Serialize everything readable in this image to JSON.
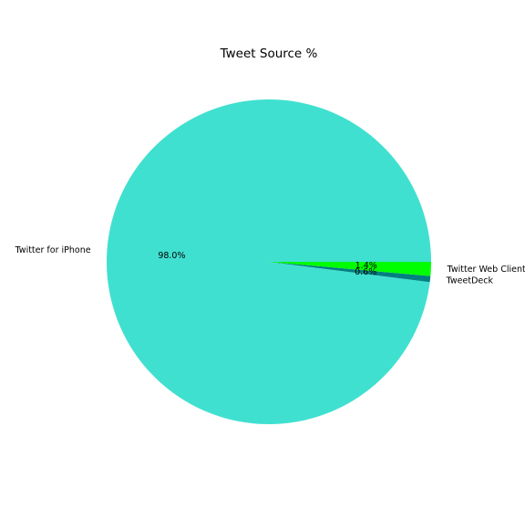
{
  "chart_data": {
    "type": "pie",
    "title": "Tweet Source %",
    "slices": [
      {
        "label": "Twitter for iPhone",
        "value": 98.0,
        "pct_label": "98.0%",
        "color": "#40e0d0"
      },
      {
        "label": "TweetDeck",
        "value": 0.6,
        "pct_label": "0.6%",
        "color": "#008080"
      },
      {
        "label": "Twitter Web Client",
        "value": 1.4,
        "pct_label": "1.4%",
        "color": "#00ff00"
      }
    ],
    "start_angle_deg": 0,
    "direction": "counterclockwise",
    "legend": "none"
  }
}
